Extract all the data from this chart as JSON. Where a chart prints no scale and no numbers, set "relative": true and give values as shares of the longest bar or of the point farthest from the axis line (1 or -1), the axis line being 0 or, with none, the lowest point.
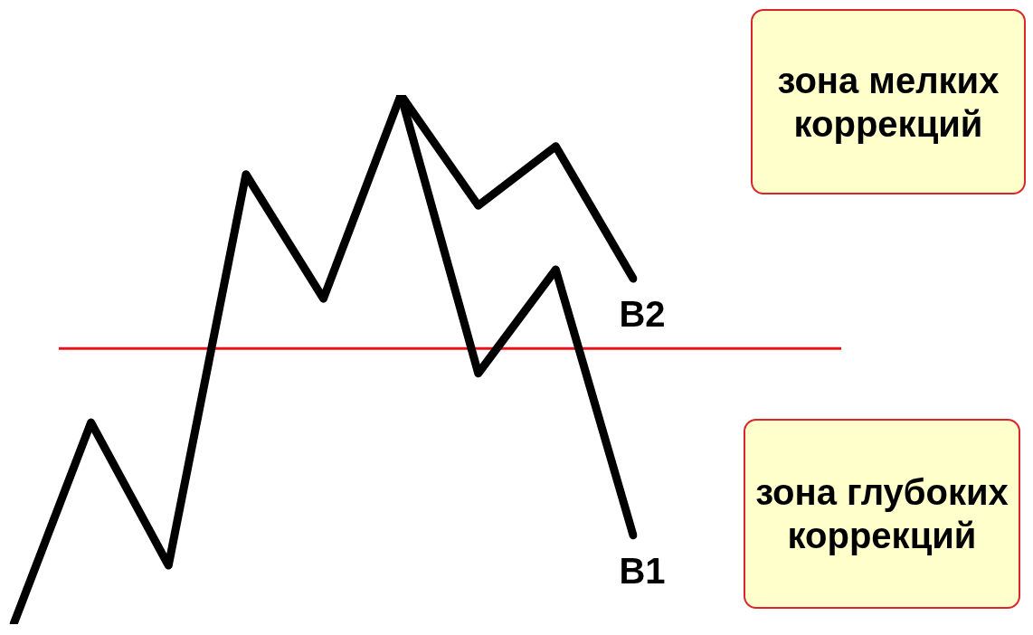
{
  "chart_data": {
    "type": "line",
    "relative": true,
    "legend": false,
    "marker": "none",
    "line_style": "solid",
    "categories": [
      null,
      null,
      null,
      null,
      null,
      null,
      null,
      null,
      null
    ],
    "series": [
      {
        "color": "#000000",
        "values": [
          0,
          0.381,
          0.111,
          0.85,
          0.615,
          1,
          null,
          null,
          null
        ]
      },
      {
        "name": "B2",
        "color": "#000000",
        "values": [
          null,
          null,
          null,
          null,
          null,
          1,
          0.791,
          0.903,
          0.653
        ]
      },
      {
        "name": "B1",
        "color": "#000000",
        "values": [
          null,
          null,
          null,
          null,
          null,
          1,
          0.474,
          0.67,
          0.168
        ]
      }
    ],
    "ref_lines": [
      {
        "axis": "y",
        "value": 0.521,
        "color": "#e8141b"
      }
    ],
    "annotations": [
      "зона мелких коррекций",
      "зона глубоких коррекций"
    ]
  }
}
